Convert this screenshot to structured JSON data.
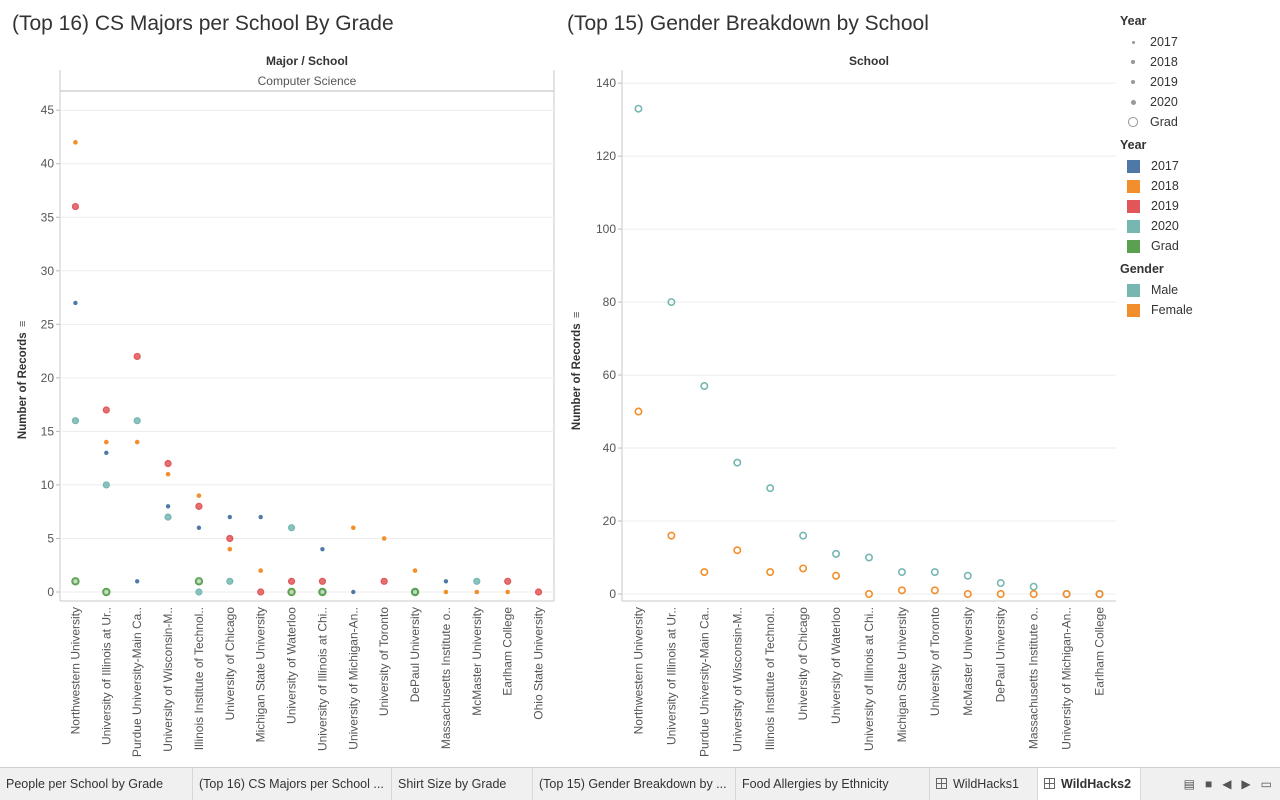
{
  "charts": {
    "left_title": "(Top 16) CS Majors per School By Grade",
    "right_title": "(Top 15) Gender Breakdown by School"
  },
  "legend": {
    "size_title": "Year",
    "size_items": [
      "2017",
      "2018",
      "2019",
      "2020",
      "Grad"
    ],
    "color_title": "Year",
    "color_items": [
      {
        "label": "2017",
        "color": "#4e79a7"
      },
      {
        "label": "2018",
        "color": "#f28e2b"
      },
      {
        "label": "2019",
        "color": "#e15759"
      },
      {
        "label": "2020",
        "color": "#76b7b2"
      },
      {
        "label": "Grad",
        "color": "#59a14f"
      }
    ],
    "gender_title": "Gender",
    "gender_items": [
      {
        "label": "Male",
        "color": "#76b7b2"
      },
      {
        "label": "Female",
        "color": "#f28e2b"
      }
    ]
  },
  "tabs": [
    {
      "label": "People per School by Grade",
      "active": false,
      "icon": ""
    },
    {
      "label": "(Top 16) CS Majors per School ...",
      "active": false,
      "icon": ""
    },
    {
      "label": "Shirt Size by Grade",
      "active": false,
      "icon": ""
    },
    {
      "label": "(Top 15) Gender Breakdown by ...",
      "active": false,
      "icon": ""
    },
    {
      "label": "Food Allergies by Ethnicity",
      "active": false,
      "icon": ""
    },
    {
      "label": "WildHacks1",
      "active": false,
      "icon": "grid-icon"
    },
    {
      "label": "WildHacks2",
      "active": true,
      "icon": "grid-icon"
    }
  ],
  "chart_data": [
    {
      "type": "scatter",
      "title": "(Top 16) CS Majors per School By Grade",
      "header": "Major / School",
      "subheader": "Computer Science",
      "ylabel": "Number of Records",
      "ylim": [
        0,
        46
      ],
      "yticks": [
        0,
        5,
        10,
        15,
        20,
        25,
        30,
        35,
        40,
        45
      ],
      "categories": [
        "Northwestern University",
        "University of Illinois at Ur..",
        "Purdue University-Main Ca..",
        "University of Wisconsin-M..",
        "Illinois Institute of Technol..",
        "University of Chicago",
        "Michigan State University",
        "University of Waterloo",
        "University of Illinois at Chi..",
        "University of Michigan-An..",
        "University of Toronto",
        "DePaul University",
        "Massachusetts Institute o..",
        "McMaster University",
        "Earlham College",
        "Ohio State University"
      ],
      "series": [
        {
          "name": "2017",
          "color": "#4e79a7",
          "values": [
            27,
            13,
            1,
            8,
            6,
            7,
            7,
            null,
            4,
            0,
            null,
            0,
            1,
            null,
            null,
            null
          ]
        },
        {
          "name": "2018",
          "color": "#f28e2b",
          "values": [
            42,
            14,
            14,
            11,
            9,
            4,
            2,
            0,
            null,
            6,
            5,
            2,
            0,
            0,
            0,
            null
          ]
        },
        {
          "name": "2019",
          "color": "#e15759",
          "values": [
            36,
            17,
            22,
            12,
            8,
            5,
            0,
            1,
            1,
            null,
            1,
            null,
            null,
            null,
            1,
            0
          ]
        },
        {
          "name": "2020",
          "color": "#76b7b2",
          "values": [
            16,
            10,
            16,
            7,
            0,
            1,
            null,
            6,
            0,
            null,
            null,
            0,
            null,
            1,
            null,
            null
          ]
        },
        {
          "name": "Grad",
          "color": "#59a14f",
          "values": [
            1,
            0,
            null,
            null,
            1,
            null,
            null,
            0,
            0,
            null,
            null,
            0,
            null,
            null,
            null,
            null
          ]
        }
      ]
    },
    {
      "type": "scatter",
      "title": "(Top 15) Gender Breakdown by School",
      "header": "School",
      "ylabel": "Number of Records",
      "ylim": [
        0,
        141
      ],
      "yticks": [
        0,
        20,
        40,
        60,
        80,
        100,
        120,
        140
      ],
      "categories": [
        "Northwestern University",
        "University of Illinois at Ur..",
        "Purdue University-Main Ca..",
        "University of Wisconsin-M..",
        "Illinois Institute of Technol..",
        "University of Chicago",
        "University of Waterloo",
        "University of Illinois at Chi..",
        "Michigan State University",
        "University of Toronto",
        "McMaster University",
        "DePaul University",
        "Massachusetts Institute o..",
        "University of Michigan-An..",
        "Earlham College"
      ],
      "series": [
        {
          "name": "Male",
          "color": "#76b7b2",
          "values": [
            133,
            80,
            57,
            36,
            29,
            16,
            11,
            10,
            6,
            6,
            5,
            3,
            2,
            0,
            0
          ]
        },
        {
          "name": "Female",
          "color": "#f28e2b",
          "values": [
            50,
            16,
            6,
            12,
            6,
            7,
            5,
            0,
            1,
            1,
            0,
            0,
            0,
            0,
            0
          ]
        }
      ]
    }
  ]
}
